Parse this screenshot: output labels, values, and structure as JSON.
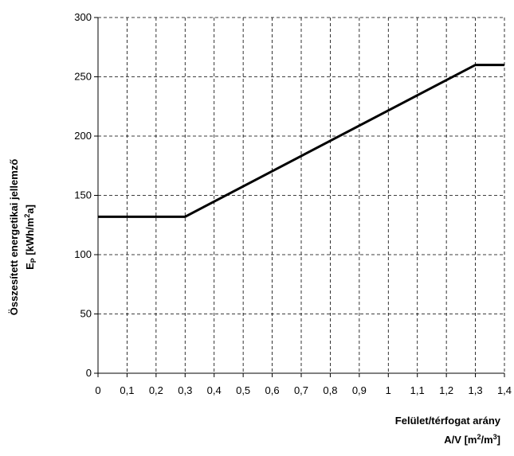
{
  "chart_data": {
    "type": "line",
    "title": "",
    "ylabel_line1": "Összesített energetikai jellemző",
    "ylabel_line2_main": "E",
    "ylabel_line2_sub": "P",
    "ylabel_line2_unit": " [kWh/m",
    "ylabel_line2_sup": "2",
    "ylabel_line2_end": "a]",
    "xlabel_line1": "Felület/térfogat arány",
    "xlabel_line2_main": "A/V [m",
    "xlabel_line2_sup1": "2",
    "xlabel_line2_mid": "/m",
    "xlabel_line2_sup2": "3",
    "xlabel_line2_end": "]",
    "xlim": [
      0,
      1.4
    ],
    "ylim": [
      0,
      300
    ],
    "x_ticks": [
      0,
      0.1,
      0.2,
      0.3,
      0.4,
      0.5,
      0.6,
      0.7,
      0.8,
      0.9,
      1.0,
      1.1,
      1.2,
      1.3,
      1.4
    ],
    "x_tick_labels": [
      "0",
      "0,1",
      "0,2",
      "0,3",
      "0,4",
      "0,5",
      "0,6",
      "0,7",
      "0,8",
      "0,9",
      "1",
      "1,1",
      "1,2",
      "1,3",
      "1,4"
    ],
    "y_ticks": [
      0,
      50,
      100,
      150,
      200,
      250,
      300
    ],
    "y_tick_labels": [
      "0",
      "50",
      "100",
      "150",
      "200",
      "250",
      "300"
    ],
    "grid": true,
    "legend": "none",
    "series": [
      {
        "x": [
          0,
          0.3,
          1.3,
          1.4
        ],
        "y": [
          132,
          132,
          260,
          260
        ],
        "color": "#000000"
      }
    ]
  }
}
